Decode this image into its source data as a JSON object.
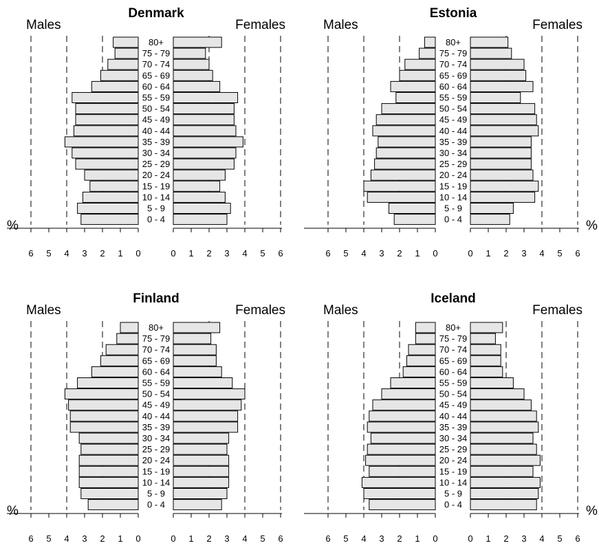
{
  "labels": {
    "males": "Males",
    "females": "Females",
    "percent": "%"
  },
  "style": {
    "bar_fill": "#e6e6e6",
    "bar_stroke": "#000000",
    "axis_color": "#000000",
    "grid_dash": "dashed vertical reference lines at 2% steps"
  },
  "chart_data": [
    {
      "type": "bar",
      "subtype": "population-pyramid",
      "title": "Denmark",
      "unit": "%",
      "categories": [
        "80+",
        "75 - 79",
        "70 - 74",
        "65 - 69",
        "60 - 64",
        "55 - 59",
        "50 - 54",
        "45 - 49",
        "40 - 44",
        "35 - 39",
        "30 - 34",
        "25 - 29",
        "20 - 24",
        "15 - 19",
        "10 - 14",
        "5 - 9",
        "0 - 4"
      ],
      "series": [
        {
          "name": "Males",
          "values": [
            1.4,
            1.3,
            1.7,
            2.1,
            2.6,
            3.7,
            3.5,
            3.5,
            3.6,
            4.1,
            3.7,
            3.5,
            3.0,
            2.7,
            3.1,
            3.4,
            3.2
          ]
        },
        {
          "name": "Females",
          "values": [
            2.7,
            1.8,
            2.0,
            2.2,
            2.6,
            3.6,
            3.4,
            3.4,
            3.5,
            3.9,
            3.5,
            3.4,
            2.9,
            2.6,
            2.9,
            3.2,
            3.0
          ]
        }
      ],
      "xlim": [
        0,
        6
      ],
      "ticks": [
        "6",
        "5",
        "4",
        "3",
        "2",
        "1",
        "0"
      ],
      "ticks_right": [
        "0",
        "1",
        "2",
        "3",
        "4",
        "5",
        "6"
      ],
      "dashed_lines_at": [
        2,
        4,
        6
      ]
    },
    {
      "type": "bar",
      "subtype": "population-pyramid",
      "title": "Estonia",
      "unit": "%",
      "categories": [
        "80+",
        "75 - 79",
        "70 - 74",
        "65 - 69",
        "60 - 64",
        "55 - 59",
        "50 - 54",
        "45 - 49",
        "40 - 44",
        "35 - 39",
        "30 - 34",
        "25 - 29",
        "20 - 24",
        "15 - 19",
        "10 - 14",
        "5 - 9",
        "0 - 4"
      ],
      "series": [
        {
          "name": "Males",
          "values": [
            0.6,
            0.9,
            1.7,
            2.0,
            2.5,
            2.2,
            3.0,
            3.3,
            3.5,
            3.2,
            3.3,
            3.4,
            3.6,
            4.0,
            3.8,
            2.6,
            2.3
          ]
        },
        {
          "name": "Females",
          "values": [
            2.1,
            2.3,
            3.0,
            3.1,
            3.5,
            2.8,
            3.6,
            3.7,
            3.8,
            3.4,
            3.4,
            3.4,
            3.5,
            3.8,
            3.6,
            2.4,
            2.2
          ]
        }
      ],
      "xlim": [
        0,
        6
      ],
      "ticks": [
        "6",
        "5",
        "4",
        "3",
        "2",
        "1",
        "0"
      ],
      "ticks_right": [
        "0",
        "1",
        "2",
        "3",
        "4",
        "5",
        "6"
      ],
      "dashed_lines_at": [
        2,
        4,
        6
      ]
    },
    {
      "type": "bar",
      "subtype": "population-pyramid",
      "title": "Finland",
      "unit": "%",
      "categories": [
        "80+",
        "75 - 79",
        "70 - 74",
        "65 - 69",
        "60 - 64",
        "55 - 59",
        "50 - 54",
        "45 - 49",
        "40 - 44",
        "35 - 39",
        "30 - 34",
        "25 - 29",
        "20 - 24",
        "15 - 19",
        "10 - 14",
        "5 - 9",
        "0 - 4"
      ],
      "series": [
        {
          "name": "Males",
          "values": [
            1.0,
            1.2,
            1.8,
            2.1,
            2.6,
            3.4,
            4.1,
            3.9,
            3.8,
            3.8,
            3.3,
            3.2,
            3.3,
            3.3,
            3.3,
            3.2,
            2.8
          ]
        },
        {
          "name": "Females",
          "values": [
            2.6,
            2.1,
            2.4,
            2.4,
            2.7,
            3.3,
            4.0,
            3.8,
            3.6,
            3.6,
            3.1,
            3.0,
            3.1,
            3.1,
            3.1,
            3.0,
            2.7
          ]
        }
      ],
      "xlim": [
        0,
        6
      ],
      "ticks": [
        "6",
        "5",
        "4",
        "3",
        "2",
        "1",
        "0"
      ],
      "ticks_right": [
        "0",
        "1",
        "2",
        "3",
        "4",
        "5",
        "6"
      ],
      "dashed_lines_at": [
        2,
        4,
        6
      ]
    },
    {
      "type": "bar",
      "subtype": "population-pyramid",
      "title": "Iceland",
      "unit": "%",
      "categories": [
        "80+",
        "75 - 79",
        "70 - 74",
        "65 - 69",
        "60 - 64",
        "55 - 59",
        "50 - 54",
        "45 - 49",
        "40 - 44",
        "35 - 39",
        "30 - 34",
        "25 - 29",
        "20 - 24",
        "15 - 19",
        "10 - 14",
        "5 - 9",
        "0 - 4"
      ],
      "series": [
        {
          "name": "Males",
          "values": [
            1.1,
            1.1,
            1.5,
            1.6,
            1.8,
            2.5,
            3.0,
            3.5,
            3.7,
            3.8,
            3.6,
            3.8,
            3.9,
            3.7,
            4.1,
            4.0,
            3.7
          ]
        },
        {
          "name": "Females",
          "values": [
            1.8,
            1.4,
            1.7,
            1.7,
            1.8,
            2.4,
            3.0,
            3.4,
            3.7,
            3.8,
            3.5,
            3.7,
            3.9,
            3.5,
            3.9,
            3.8,
            3.7
          ]
        }
      ],
      "xlim": [
        0,
        6
      ],
      "ticks": [
        "6",
        "5",
        "4",
        "3",
        "2",
        "1",
        "0"
      ],
      "ticks_right": [
        "0",
        "1",
        "2",
        "3",
        "4",
        "5",
        "6"
      ],
      "dashed_lines_at": [
        2,
        4,
        6
      ]
    }
  ]
}
